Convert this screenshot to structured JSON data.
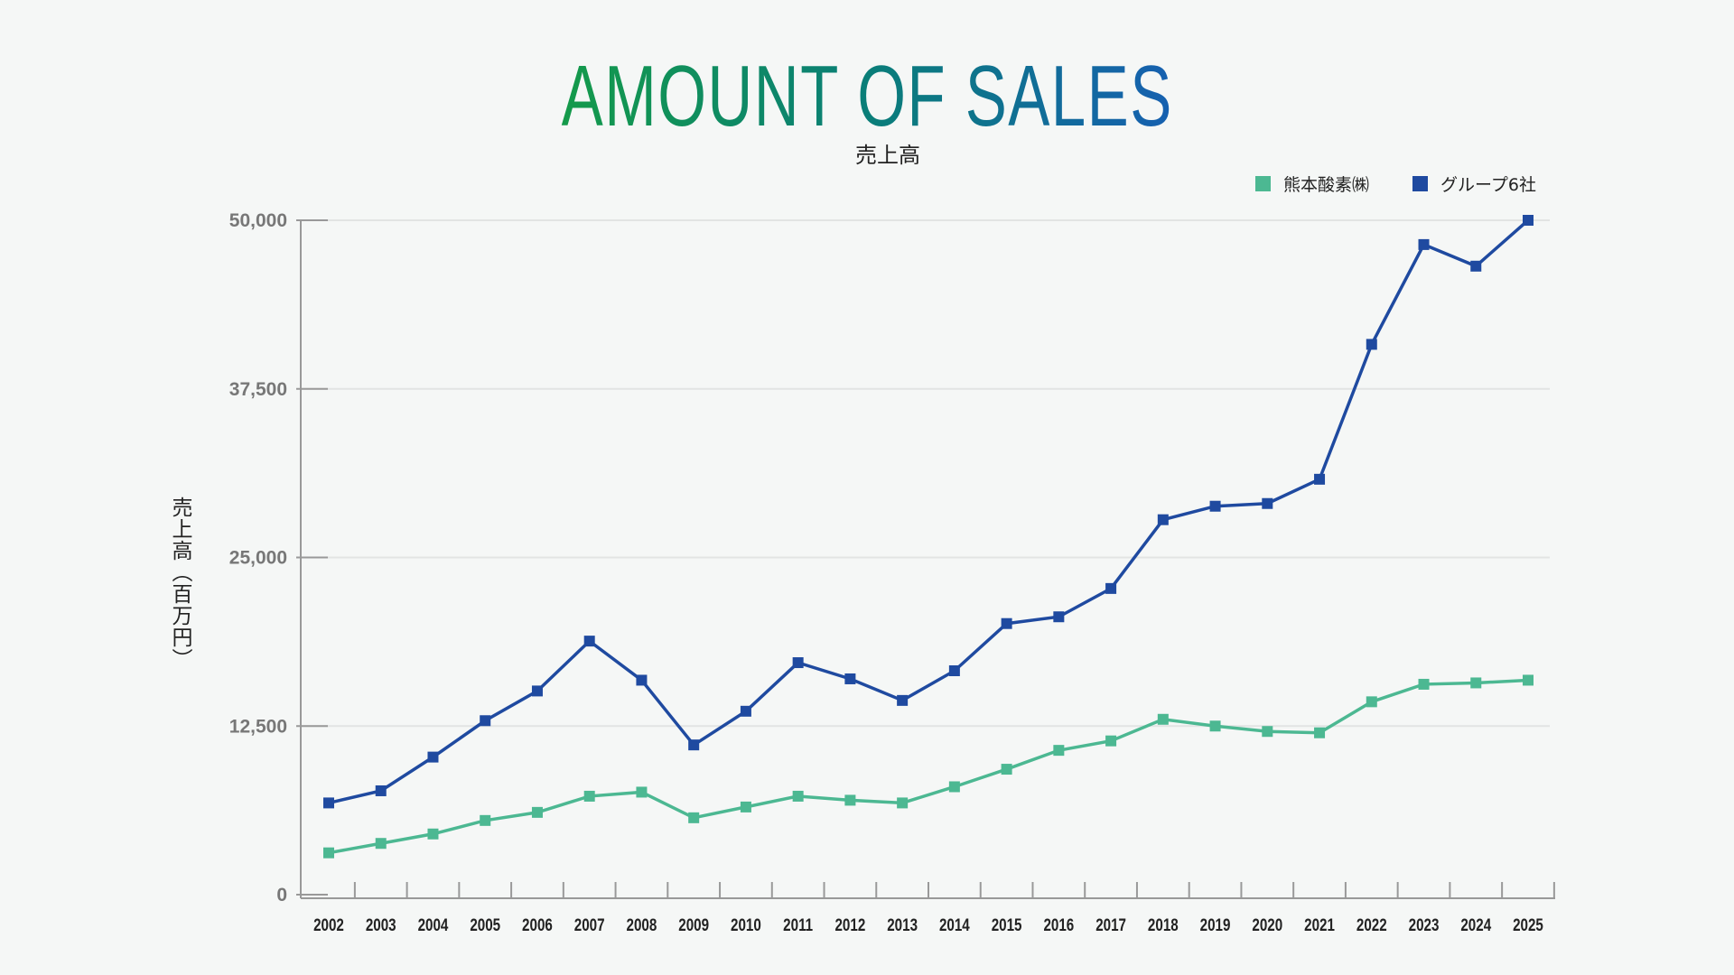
{
  "chart_data": {
    "type": "line",
    "title": "AMOUNT OF SALES",
    "subtitle": "売上高",
    "xlabel": "",
    "ylabel": "売上高（百万円）",
    "ylim": [
      0,
      50000
    ],
    "yticks": [
      0,
      12500,
      25000,
      37500,
      50000
    ],
    "ytick_labels": [
      "0",
      "12,500",
      "25,000",
      "37,500",
      "50,000"
    ],
    "grid": true,
    "legend_position": "top-right",
    "x": [
      "2002",
      "2003",
      "2004",
      "2005",
      "2006",
      "2007",
      "2008",
      "2009",
      "2010",
      "2011",
      "2012",
      "2013",
      "2014",
      "2015",
      "2016",
      "2017",
      "2018",
      "2019",
      "2020",
      "2021",
      "2022",
      "2023",
      "2024",
      "2025"
    ],
    "series": [
      {
        "name": "熊本酸素㈱",
        "color": "#4cb892",
        "values": [
          3100,
          3800,
          4500,
          5500,
          6100,
          7300,
          7600,
          5700,
          6500,
          7300,
          7000,
          6800,
          8000,
          9300,
          10700,
          11400,
          13000,
          12500,
          12100,
          12000,
          14300,
          15600,
          15700,
          15900
        ]
      },
      {
        "name": "グループ6社",
        "color": "#1f4aa0",
        "values": [
          6800,
          7700,
          10200,
          12900,
          15100,
          18800,
          15900,
          11100,
          13600,
          17200,
          16000,
          14400,
          16600,
          20100,
          20600,
          22700,
          27800,
          28800,
          29000,
          30800,
          40800,
          48200,
          46600,
          50000
        ]
      }
    ]
  }
}
